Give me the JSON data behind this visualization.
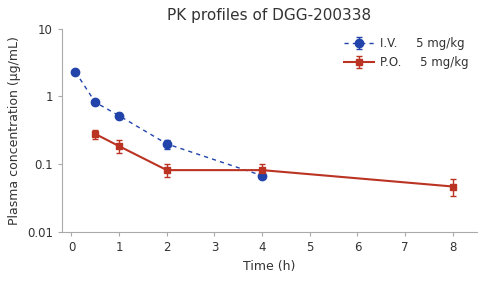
{
  "title": "PK profiles of DGG-200338",
  "xlabel": "Time (h)",
  "ylabel": "Plasma concentration (μg/mL)",
  "iv": {
    "label": "I.V.",
    "dose": "5 mg/kg",
    "color": "#2244aa",
    "x": [
      0.083,
      0.5,
      1,
      2,
      4
    ],
    "y": [
      2.3,
      0.82,
      0.52,
      0.2,
      0.068
    ],
    "yerr": [
      0.0,
      0.07,
      0.06,
      0.03,
      0.0
    ]
  },
  "po": {
    "label": "P.O.",
    "dose": "5 mg/kg",
    "color": "#bb3322",
    "x": [
      0.5,
      1,
      2,
      4,
      8
    ],
    "y": [
      0.28,
      0.185,
      0.082,
      0.082,
      0.047
    ],
    "yerr": [
      0.045,
      0.04,
      0.018,
      0.018,
      0.013
    ]
  },
  "xlim": [
    -0.2,
    8.5
  ],
  "xticks": [
    0,
    1,
    2,
    3,
    4,
    5,
    6,
    7,
    8
  ],
  "ylim": [
    0.01,
    10
  ],
  "yticks": [
    0.01,
    0.1,
    1,
    10
  ],
  "ytick_labels": [
    "0.01",
    "0.1",
    "1",
    "10"
  ],
  "background_color": "#ffffff",
  "title_fontsize": 11,
  "label_fontsize": 9,
  "tick_fontsize": 8.5,
  "title_color": "#333333"
}
